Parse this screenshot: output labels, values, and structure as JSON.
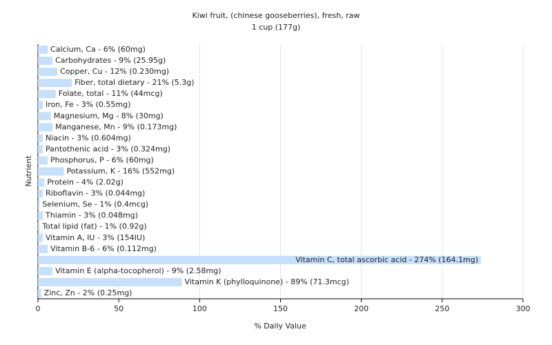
{
  "chart_data": {
    "type": "bar",
    "orientation": "horizontal",
    "title": "Kiwi fruit, (chinese gooseberries), fresh, raw",
    "subtitle": "1 cup (177g)",
    "x_label": "% Daily Value",
    "y_label": "Nutrient",
    "color": "#c6dffb",
    "values": [
      6,
      9,
      12,
      21,
      11,
      3,
      8,
      9,
      3,
      3,
      6,
      16,
      4,
      3,
      1,
      3,
      1,
      3,
      6,
      274,
      9,
      89,
      2
    ],
    "value_labels": [
      "Calcium, Ca - 6% (60mg)",
      "Carbohydrates - 9% (25.95g)",
      "Copper, Cu - 12% (0.230mg)",
      "Fiber, total dietary - 21% (5.3g)",
      "Folate, total - 11% (44mcg)",
      "Iron, Fe - 3% (0.55mg)",
      "Magnesium, Mg - 8% (30mg)",
      "Manganese, Mn - 9% (0.173mg)",
      "Niacin - 3% (0.604mg)",
      "Pantothenic acid - 3% (0.324mg)",
      "Phosphorus, P - 6% (60mg)",
      "Potassium, K - 16% (552mg)",
      "Protein - 4% (2.02g)",
      "Riboflavin - 3% (0.044mg)",
      "Selenium, Se - 1% (0.4mcg)",
      "Thiamin - 3% (0.048mg)",
      "Total lipid (fat) - 1% (0.92g)",
      "Vitamin A, IU - 3% (154IU)",
      "Vitamin B-6 - 6% (0.112mg)",
      "Vitamin C, total ascorbic acid - 274% (164.1mg)",
      "Vitamin E (alpha-tocopherol) - 9% (2.58mg)",
      "Vitamin K (phylloquinone) - 89% (71.3mcg)",
      "Zinc, Zn - 2% (0.25mg)"
    ],
    "xlim": [
      0,
      300
    ],
    "xticks": [
      0,
      50,
      100,
      150,
      200,
      250,
      300
    ],
    "grid": true
  }
}
